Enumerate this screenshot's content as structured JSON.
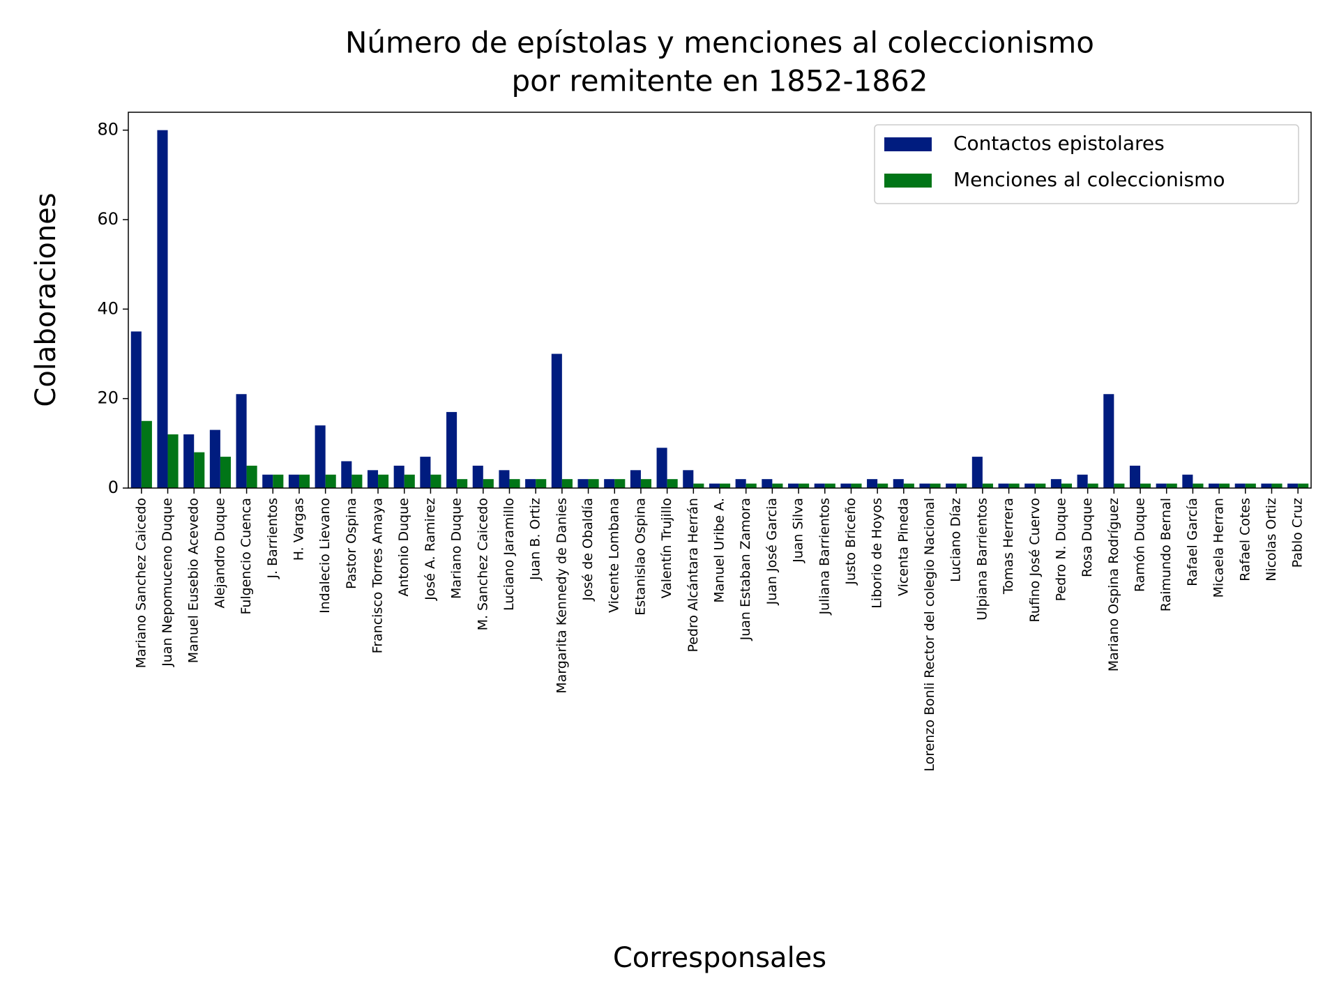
{
  "chart_data": {
    "type": "bar",
    "title": "Número de epístolas y menciones al coleccionismo",
    "subtitle": "por remitente en 1852-1862",
    "x_label": "Corresponsales",
    "y_label": "Colaboraciones",
    "categories": [
      "Mariano Sanchez Caicedo",
      "Juan Nepomuceno Duque",
      "Manuel Eusebio Acevedo",
      "Alejandro Duque",
      "Fulgencio Cuenca",
      "J. Barrientos",
      "H. Vargas",
      "Indalecio Lievano",
      "Pastor Ospina",
      "Francisco Torres Amaya",
      "Antonio Duque",
      "José A. Ramirez",
      "Mariano Duque",
      "M. Sanchez Caicedo",
      "Luciano Jaramillo",
      "Juan B. Ortiz",
      "Margarita Kennedy de Danies",
      "José de Obaldía",
      "Vicente Lombana",
      "Estanislao Ospina",
      "Valentín Trujillo",
      "Pedro Alcántara Herrán",
      "Manuel Uribe A.",
      "Juan Estaban Zamora",
      "Juan José Garcia",
      "Juan Silva",
      "Juliana Barrientos",
      "Justo Briceño",
      "Liborio de Hoyos",
      "Vicenta Pineda",
      "Lorenzo Bonli Rector del colegio Nacional",
      "Luciano Díaz",
      "Ulpiana Barrientos",
      "Tomas Herrera",
      "Rufino José Cuervo",
      "Pedro N. Duque",
      "Rosa Duque",
      "Mariano Ospina Rodríguez",
      "Ramón Duque",
      "Raimundo Bernal",
      "Rafael García",
      "Micaela Herran",
      "Rafael Cotes",
      "Nicolas Ortiz",
      "Pablo Cruz"
    ],
    "series": [
      {
        "name": "Contactos epistolares",
        "color": "#001c7f",
        "values": [
          35,
          80,
          12,
          13,
          21,
          3,
          3,
          14,
          6,
          4,
          5,
          7,
          17,
          5,
          4,
          2,
          30,
          2,
          2,
          4,
          9,
          4,
          1,
          2,
          2,
          1,
          1,
          1,
          2,
          2,
          1,
          1,
          7,
          1,
          1,
          2,
          3,
          21,
          5,
          1,
          3,
          1,
          1,
          1,
          1
        ]
      },
      {
        "name": "Menciones al coleccionismo",
        "color": "#017517",
        "values": [
          15,
          12,
          8,
          7,
          5,
          3,
          3,
          3,
          3,
          3,
          3,
          3,
          2,
          2,
          2,
          2,
          2,
          2,
          2,
          2,
          2,
          1,
          1,
          1,
          1,
          1,
          1,
          1,
          1,
          1,
          1,
          1,
          1,
          1,
          1,
          1,
          1,
          1,
          1,
          1,
          1,
          1,
          1,
          1,
          1
        ]
      }
    ],
    "ylim": [
      0,
      84
    ],
    "yticks": [
      0,
      20,
      40,
      60,
      80
    ],
    "grid": false,
    "legend": "upper right"
  }
}
